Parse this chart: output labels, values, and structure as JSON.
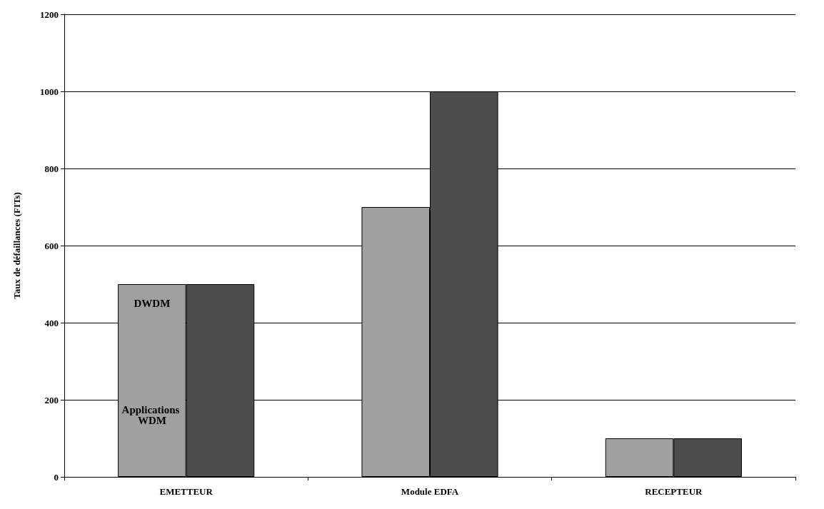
{
  "chart_data": {
    "type": "bar",
    "ylabel": "Taux de défaillances (FITs)",
    "categories": [
      "EMETTEUR",
      "Module EDFA",
      "RECEPTEUR"
    ],
    "series": [
      {
        "color": "#a0a0a0",
        "values": [
          500,
          700,
          100
        ]
      },
      {
        "color": "#4d4d4d",
        "values": [
          500,
          1000,
          100
        ]
      }
    ],
    "ylim": [
      0,
      1200
    ],
    "yticks": [
      0,
      200,
      400,
      600,
      800,
      1000,
      1200
    ],
    "grid": "y",
    "annotations": [
      {
        "text": "DWDM",
        "x": "EMETTEUR",
        "y": 450
      },
      {
        "text": "Applications WDM",
        "x": "EMETTEUR",
        "y": 160
      }
    ]
  }
}
